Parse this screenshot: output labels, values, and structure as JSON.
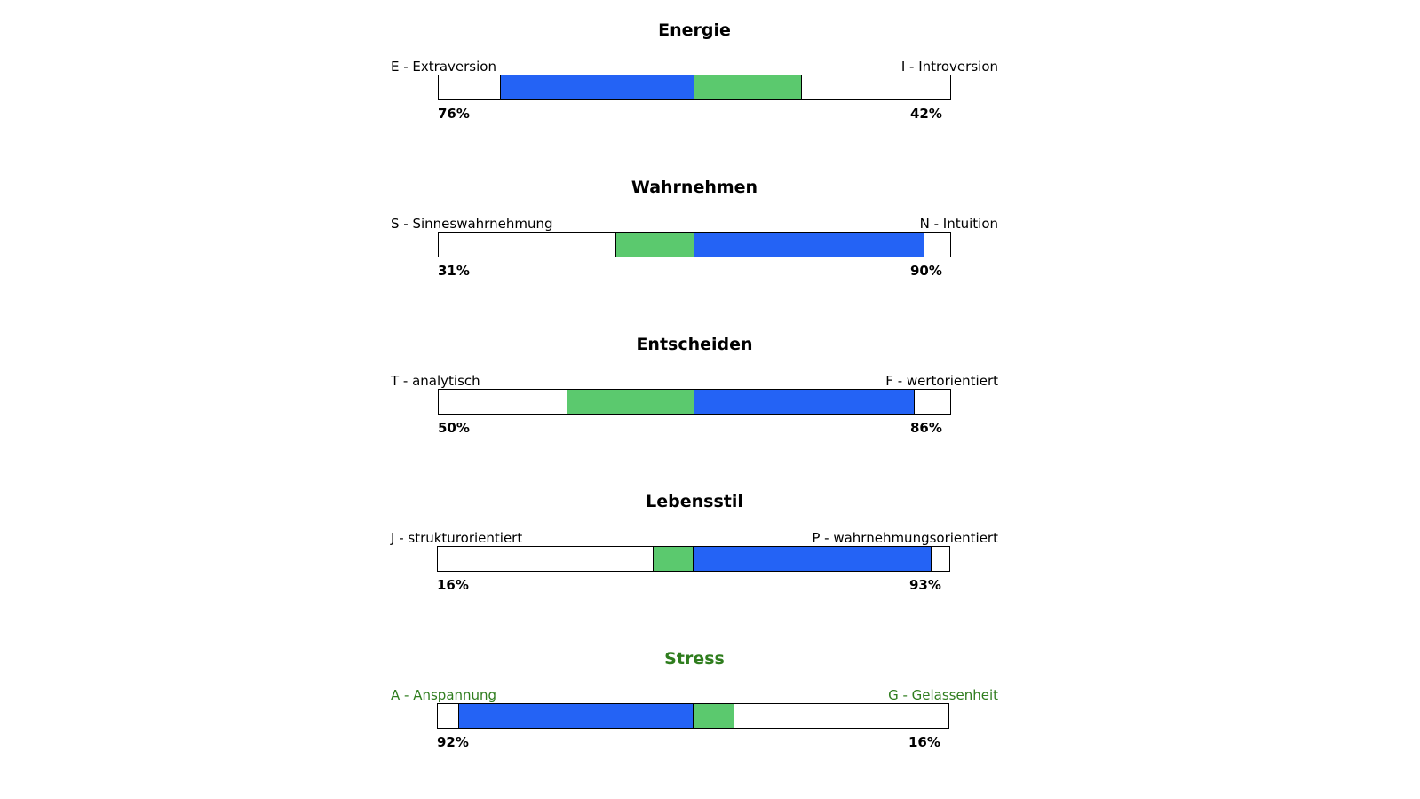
{
  "colors": {
    "dominant": "#2463f5",
    "secondary": "#5bc96e",
    "stress_text": "#2f7d1e",
    "border": "#000000"
  },
  "chart_data": [
    {
      "type": "bar",
      "title": "Energie",
      "left_label": "E - Extraversion",
      "right_label": "I - Introversion",
      "left_value": 76,
      "right_value": 42,
      "left_value_label": "76%",
      "right_value_label": "42%",
      "range": [
        -100,
        100
      ],
      "highlight": false
    },
    {
      "type": "bar",
      "title": "Wahrnehmen",
      "left_label": "S - Sinneswahrnehmung",
      "right_label": "N - Intuition",
      "left_value": 31,
      "right_value": 90,
      "left_value_label": "31%",
      "right_value_label": "90%",
      "range": [
        -100,
        100
      ],
      "highlight": false
    },
    {
      "type": "bar",
      "title": "Entscheiden",
      "left_label": "T - analytisch",
      "right_label": "F - wertorientiert",
      "left_value": 50,
      "right_value": 86,
      "left_value_label": "50%",
      "right_value_label": "86%",
      "range": [
        -100,
        100
      ],
      "highlight": false
    },
    {
      "type": "bar",
      "title": "Lebensstil",
      "left_label": "J - strukturorientiert",
      "right_label": "P - wahrnehmungsorientiert",
      "left_value": 16,
      "right_value": 93,
      "left_value_label": "16%",
      "right_value_label": "93%",
      "range": [
        -100,
        100
      ],
      "highlight": false
    },
    {
      "type": "bar",
      "title": "Stress",
      "left_label": "A - Anspannung",
      "right_label": "G - Gelassenheit",
      "left_value": 92,
      "right_value": 16,
      "left_value_label": "92%",
      "right_value_label": "16%",
      "range": [
        -100,
        100
      ],
      "highlight": true
    }
  ]
}
